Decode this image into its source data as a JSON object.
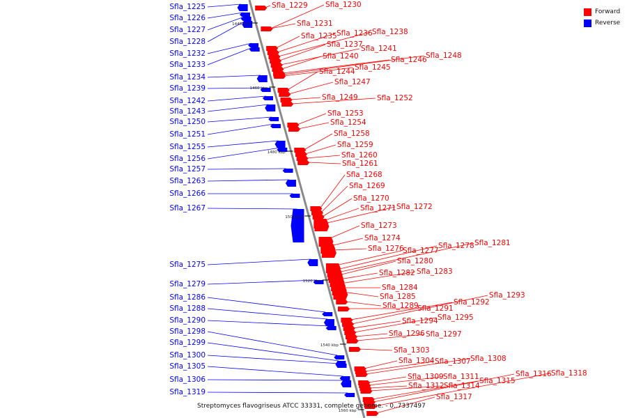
{
  "footer": {
    "organism": "Streptomyces flavogriseus ATCC 33331, complete genome.",
    "range": "- 0..7337497"
  },
  "legend": {
    "forward_label": "Forward",
    "reverse_label": "Reverse",
    "forward_color": "#ff0000",
    "reverse_color": "#0000ff"
  },
  "ticks": [
    "1440 kbp",
    "1460 kbp",
    "1480 kbp",
    "1500 kbp",
    "1520 kbp",
    "1540 kbp",
    "1560 kbp"
  ],
  "reverse_genes": [
    "Sfla_1225",
    "Sfla_1226",
    "Sfla_1227",
    "Sfla_1228",
    "Sfla_1232",
    "Sfla_1233",
    "Sfla_1234",
    "Sfla_1239",
    "Sfla_1242",
    "Sfla_1243",
    "Sfla_1250",
    "Sfla_1251",
    "Sfla_1255",
    "Sfla_1256",
    "Sfla_1257",
    "Sfla_1263",
    "Sfla_1266",
    "Sfla_1267",
    "Sfla_1275",
    "Sfla_1279",
    "Sfla_1286",
    "Sfla_1288",
    "Sfla_1290",
    "Sfla_1298",
    "Sfla_1299",
    "Sfla_1300",
    "Sfla_1305",
    "Sfla_1306",
    "Sfla_1319"
  ],
  "forward_genes": [
    "Sfla_1229",
    "Sfla_1230",
    "Sfla_1231",
    "Sfla_1235",
    "Sfla_1236",
    "Sfla_1238",
    "Sfla_1237",
    "Sfla_1241",
    "Sfla_1240",
    "Sfla_1246",
    "Sfla_1248",
    "Sfla_1245",
    "Sfla_1244",
    "Sfla_1247",
    "Sfla_1249",
    "Sfla_1252",
    "Sfla_1253",
    "Sfla_1254",
    "Sfla_1258",
    "Sfla_1259",
    "Sfla_1260",
    "Sfla_1261",
    "Sfla_1268",
    "Sfla_1269",
    "Sfla_1270",
    "Sfla_1271",
    "Sfla_1272",
    "Sfla_1273",
    "Sfla_1274",
    "Sfla_1276",
    "Sfla_1277",
    "Sfla_1278",
    "Sfla_1281",
    "Sfla_1280",
    "Sfla_1282",
    "Sfla_1283",
    "Sfla_1284",
    "Sfla_1285",
    "Sfla_1289",
    "Sfla_1291",
    "Sfla_1292",
    "Sfla_1293",
    "Sfla_1294",
    "Sfla_1295",
    "Sfla_1296",
    "Sfla_1297",
    "Sfla_1303",
    "Sfla_1304",
    "Sfla_1307",
    "Sfla_1308",
    "Sfla_1309",
    "Sfla_1311",
    "Sfla_1312",
    "Sfla_1314",
    "Sfla_1315",
    "Sfla_1316",
    "Sfla_1318",
    "Sfla_1317"
  ]
}
